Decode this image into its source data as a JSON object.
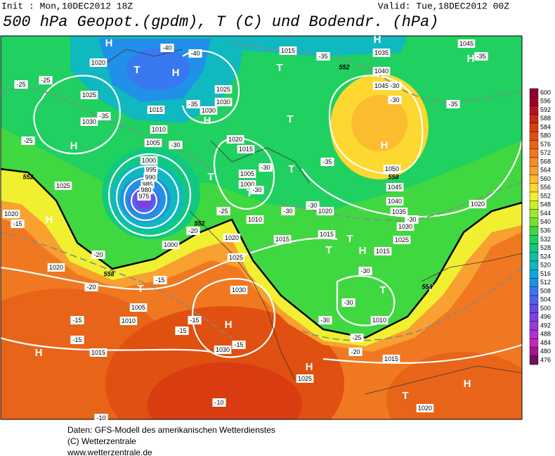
{
  "header": {
    "init": "Init : Mon,10DEC2012  18Z",
    "valid": "Valid: Tue,18DEC2012 00Z",
    "title": "500 hPa Geopot.(gpdm), T (C) und Bodendr. (hPa)"
  },
  "map": {
    "markers": [
      "H",
      "H",
      "H",
      "H",
      "H",
      "H",
      "H",
      "H",
      "H",
      "H",
      "H",
      "H",
      "H",
      "T",
      "T",
      "T",
      "T",
      "T",
      "T",
      "T",
      "T",
      "T",
      "T",
      "T",
      "T"
    ],
    "isobar_labels": [
      "1020",
      "1025",
      "1030",
      "1025",
      "1020",
      "1015",
      "1010",
      "1005",
      "1000",
      "995",
      "990",
      "985",
      "980",
      "975",
      "1000",
      "1005",
      "1010",
      "1015",
      "1020",
      "1025",
      "1030",
      "1030",
      "1025",
      "1015",
      "1020",
      "1015",
      "1035",
      "1040",
      "1045",
      "1050",
      "1045",
      "1040",
      "1035",
      "1030",
      "1025",
      "1015",
      "1010",
      "1015",
      "1020",
      "1020",
      "1045",
      "1025",
      "1030",
      "1020",
      "1015",
      "1005",
      "1000",
      "1010",
      "1020",
      "1015",
      "1030"
    ],
    "temperature_labels": [
      "-40",
      "-40",
      "-35",
      "-30",
      "-35",
      "-25",
      "-25",
      "-25",
      "-15",
      "-20",
      "-20",
      "-15",
      "-15",
      "-15",
      "-15",
      "-15",
      "-15",
      "-20",
      "-25",
      "-30",
      "-30",
      "-30",
      "-30",
      "-35",
      "-35",
      "-30",
      "-30",
      "-35",
      "-30",
      "-30",
      "-30",
      "-25",
      "-20",
      "-10",
      "-30",
      "-10",
      "-35"
    ],
    "contour_labels": [
      "552",
      "558",
      "552",
      "552",
      "558",
      "558"
    ]
  },
  "legend": {
    "levels": [
      600,
      596,
      592,
      588,
      584,
      580,
      576,
      572,
      568,
      564,
      560,
      556,
      552,
      548,
      544,
      540,
      536,
      532,
      528,
      524,
      520,
      516,
      512,
      508,
      504,
      500,
      496,
      492,
      488,
      484,
      480,
      476
    ],
    "colors": [
      "#8c0030",
      "#a00024",
      "#b41420",
      "#c82818",
      "#d83c10",
      "#e05010",
      "#e86418",
      "#f07820",
      "#f48c28",
      "#f8a030",
      "#fcbc30",
      "#fcd830",
      "#f0f030",
      "#c8f030",
      "#a0e830",
      "#78e030",
      "#40d840",
      "#20d060",
      "#10c880",
      "#10c0a0",
      "#10b8c0",
      "#10a8d8",
      "#2090e8",
      "#3878f0",
      "#5060f0",
      "#6848e8",
      "#8040e0",
      "#9838d8",
      "#b030d0",
      "#c028b8",
      "#a01890",
      "#701060"
    ]
  },
  "footer": {
    "lines": [
      "Daten: GFS-Modell des amerikanischen Wetterdienstes",
      "(C) Wetterzentrale",
      "www.wetterzentrale.de"
    ]
  }
}
